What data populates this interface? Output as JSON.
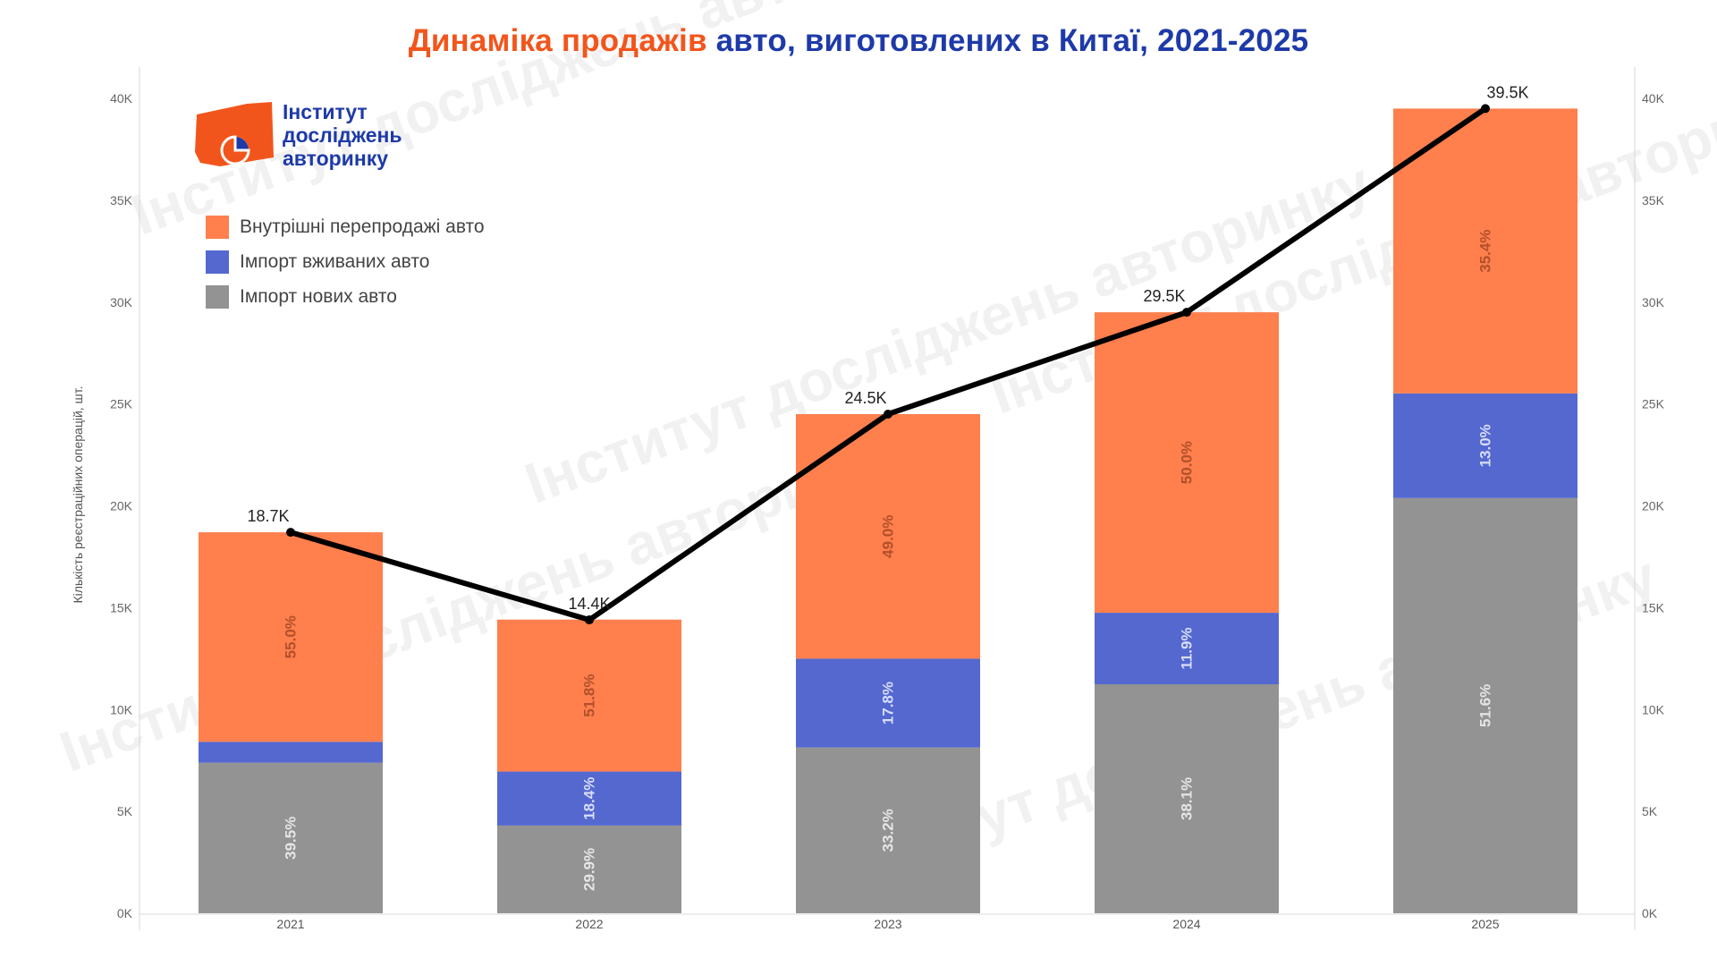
{
  "title": {
    "part1": "Динаміка продажів",
    "part2": "авто, виготовлених в Китаї, 2021-2025"
  },
  "logo": {
    "line1": "Інститут",
    "line2": "досліджень",
    "line3": "авторинку",
    "icon": "pie-chart-icon",
    "color_primary": "#f2551c",
    "color_text": "#1e3aa8"
  },
  "watermark_text": "Інститут досліджень авторинку",
  "chart_data": {
    "type": "bar",
    "stacked": true,
    "title": "Динаміка продажів авто, виготовлених в Китаї, 2021-2025",
    "ylabel": "Кількість реєстраційних операцій, шт.",
    "xlabel": "",
    "categories": [
      "2021",
      "2022",
      "2023",
      "2024",
      "2025"
    ],
    "ylim": [
      0,
      40000
    ],
    "yticks": [
      "0K",
      "5K",
      "10K",
      "15K",
      "20K",
      "25K",
      "30K",
      "35K",
      "40K"
    ],
    "secondary_yticks": [
      "0K",
      "5K",
      "10K",
      "15K",
      "20K",
      "25K",
      "30K",
      "35K",
      "40K"
    ],
    "totals": [
      18700,
      14400,
      24500,
      29500,
      39500
    ],
    "total_labels": [
      "18.7K",
      "14.4K",
      "24.5K",
      "29.5K",
      "39.5K"
    ],
    "series": [
      {
        "name": "Імпорт нових авто",
        "color": "#939393",
        "values": [
          7387,
          4306,
          8134,
          11240,
          20382
        ],
        "labels": [
          "39.5%",
          "29.9%",
          "33.2%",
          "38.1%",
          "51.6%"
        ]
      },
      {
        "name": "Імпорт вживаних авто",
        "color": "#5468d0",
        "values": [
          1029,
          2650,
          4361,
          3510,
          5135
        ],
        "labels": [
          "",
          "18.4%",
          "17.8%",
          "11.9%",
          "13.0%"
        ]
      },
      {
        "name": "Внутрішні перепродажі авто",
        "color": "#ff7f4d",
        "values": [
          10285,
          7459,
          12005,
          14750,
          13983
        ],
        "labels": [
          "55.0%",
          "51.8%",
          "49.0%",
          "50.0%",
          "35.4%"
        ]
      }
    ],
    "line": {
      "name": "",
      "color": "#000000",
      "values": [
        18700,
        14400,
        24500,
        29500,
        39500
      ]
    },
    "legend": {
      "position": "top-left",
      "order": [
        "Внутрішні перепродажі авто",
        "Імпорт вживаних авто",
        "Імпорт нових авто"
      ]
    },
    "grid": false
  }
}
